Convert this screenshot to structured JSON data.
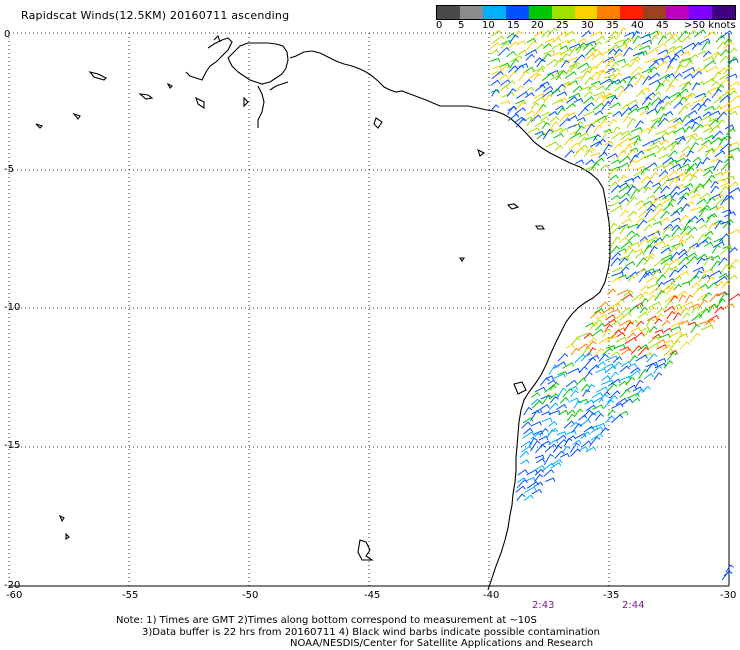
{
  "title": "Rapidscat Winds(12.5KM) 20160711 ascending",
  "legend": {
    "colors": [
      "#4a4a4a",
      "#8c8c8c",
      "#00b0ff",
      "#0050ff",
      "#00c800",
      "#a0e000",
      "#ffd000",
      "#ff8000",
      "#ff2000",
      "#a04020",
      "#c000c0",
      "#8000ff",
      "#400080"
    ],
    "labels": [
      "0",
      "5",
      "10",
      "15",
      "20",
      "25",
      "30",
      "35",
      "40",
      "45",
      ">50 knots"
    ]
  },
  "y_axis": [
    "0",
    "-5",
    "-10",
    "-15",
    "-20"
  ],
  "x_axis": [
    "-60",
    "-55",
    "-50",
    "-45",
    "-40",
    "-35",
    "-30"
  ],
  "times": [
    "2:43",
    "2:44"
  ],
  "notes": [
    "Note: 1) Times are GMT 2)Times along bottom correspond to measurement at ~10S",
    "3)Data buffer is 22 hrs from 20160711 4) Black wind barbs indicate possible contamination",
    "NOAA/NESDIS/Center for Satellite Applications and Research"
  ]
}
